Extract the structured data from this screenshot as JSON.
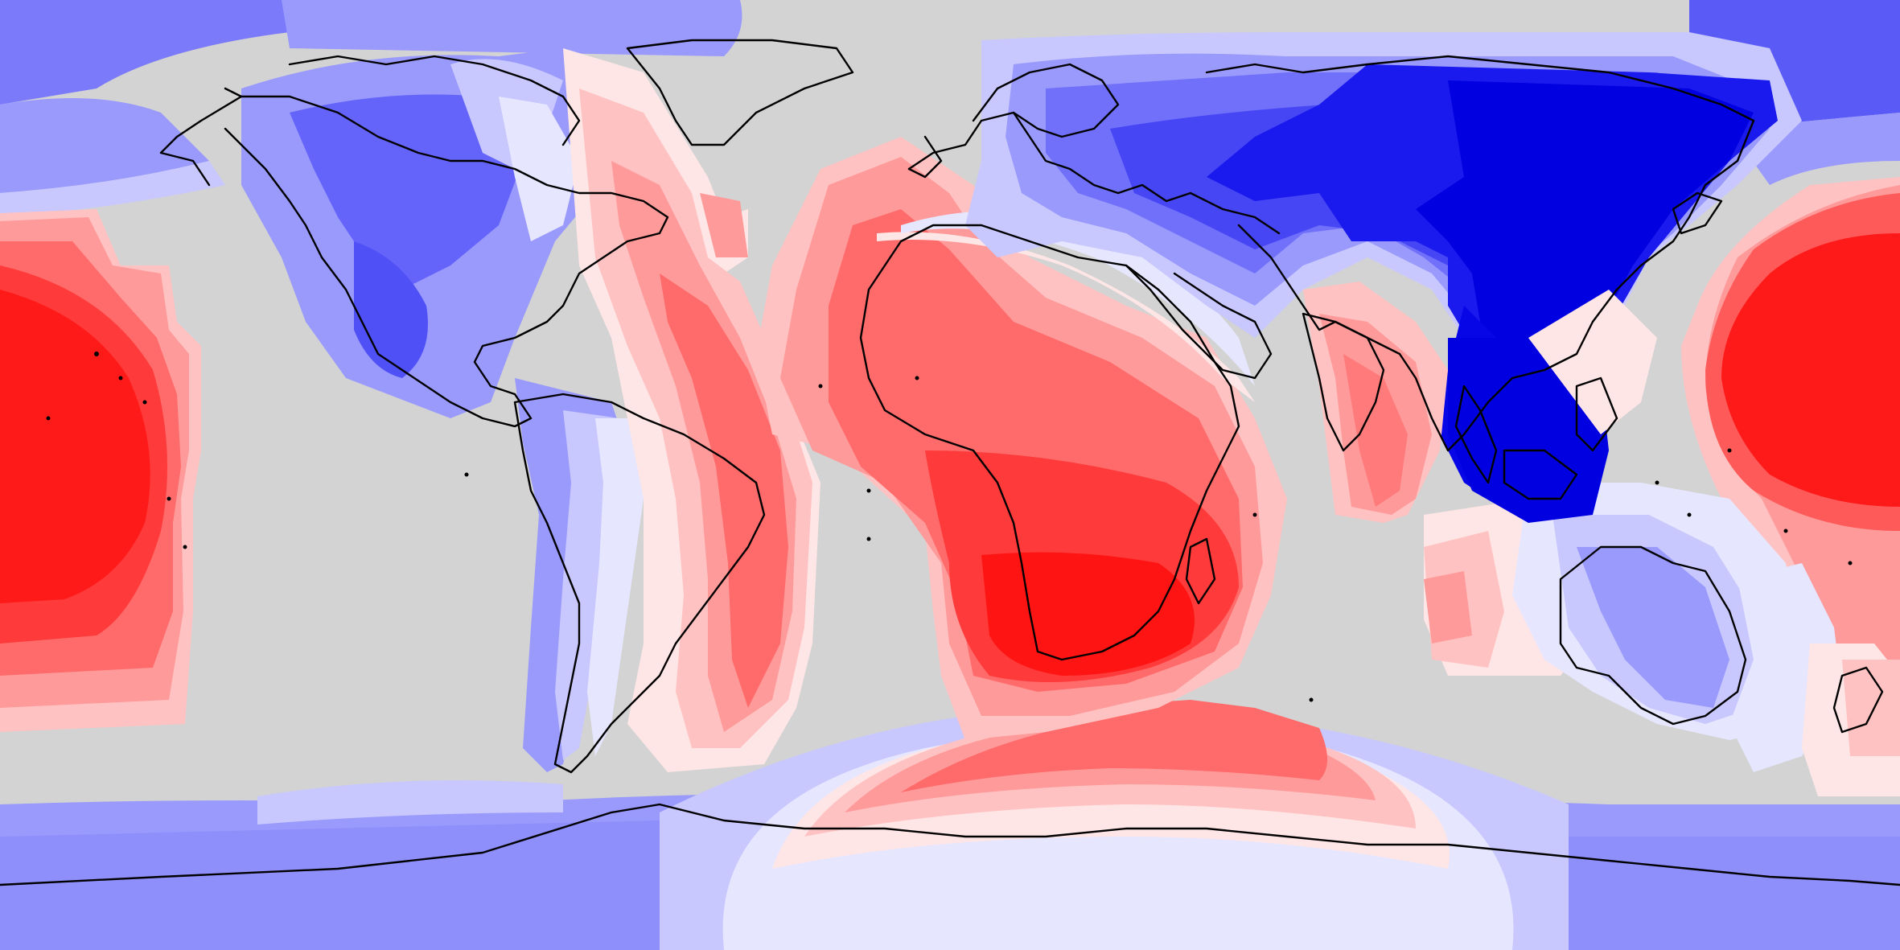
{
  "map": {
    "projection": "equirectangular",
    "extent": {
      "lon": [
        -180,
        180
      ],
      "lat": [
        -90,
        90
      ]
    },
    "ocean_fill_color": "#d3d3d3",
    "coastline_color": "#000000",
    "palette": {
      "deep_blue": "#0000e8",
      "blue": "#3c3cf5",
      "mid_blue": "#6464fa",
      "light_blue": "#9a9afc",
      "pale_blue": "#c8c8fe",
      "near_white_blue": "#e6e6ff",
      "near_white_red": "#ffe6e6",
      "pale_red": "#ffc2c2",
      "light_red": "#ff9a9a",
      "mid_red": "#ff6a6a",
      "red": "#ff3a3a",
      "deep_red": "#ff0e0e"
    },
    "regions": [
      {
        "name": "north-pacific-blue-band",
        "tone": "blue"
      },
      {
        "name": "central-pacific-red-anomaly",
        "tone": "red"
      },
      {
        "name": "western-pacific-red-anomaly",
        "tone": "red"
      },
      {
        "name": "north-america-blue-field",
        "tone": "blue"
      },
      {
        "name": "atlantic-red-band",
        "tone": "red"
      },
      {
        "name": "africa-red-field",
        "tone": "red"
      },
      {
        "name": "eurasia-deep-blue-field",
        "tone": "blue"
      },
      {
        "name": "indian-ocean-red-field",
        "tone": "red"
      },
      {
        "name": "australia-blue-field",
        "tone": "blue"
      },
      {
        "name": "antarctic-red-arc",
        "tone": "red"
      },
      {
        "name": "southern-ocean-blue-band",
        "tone": "blue"
      }
    ]
  }
}
